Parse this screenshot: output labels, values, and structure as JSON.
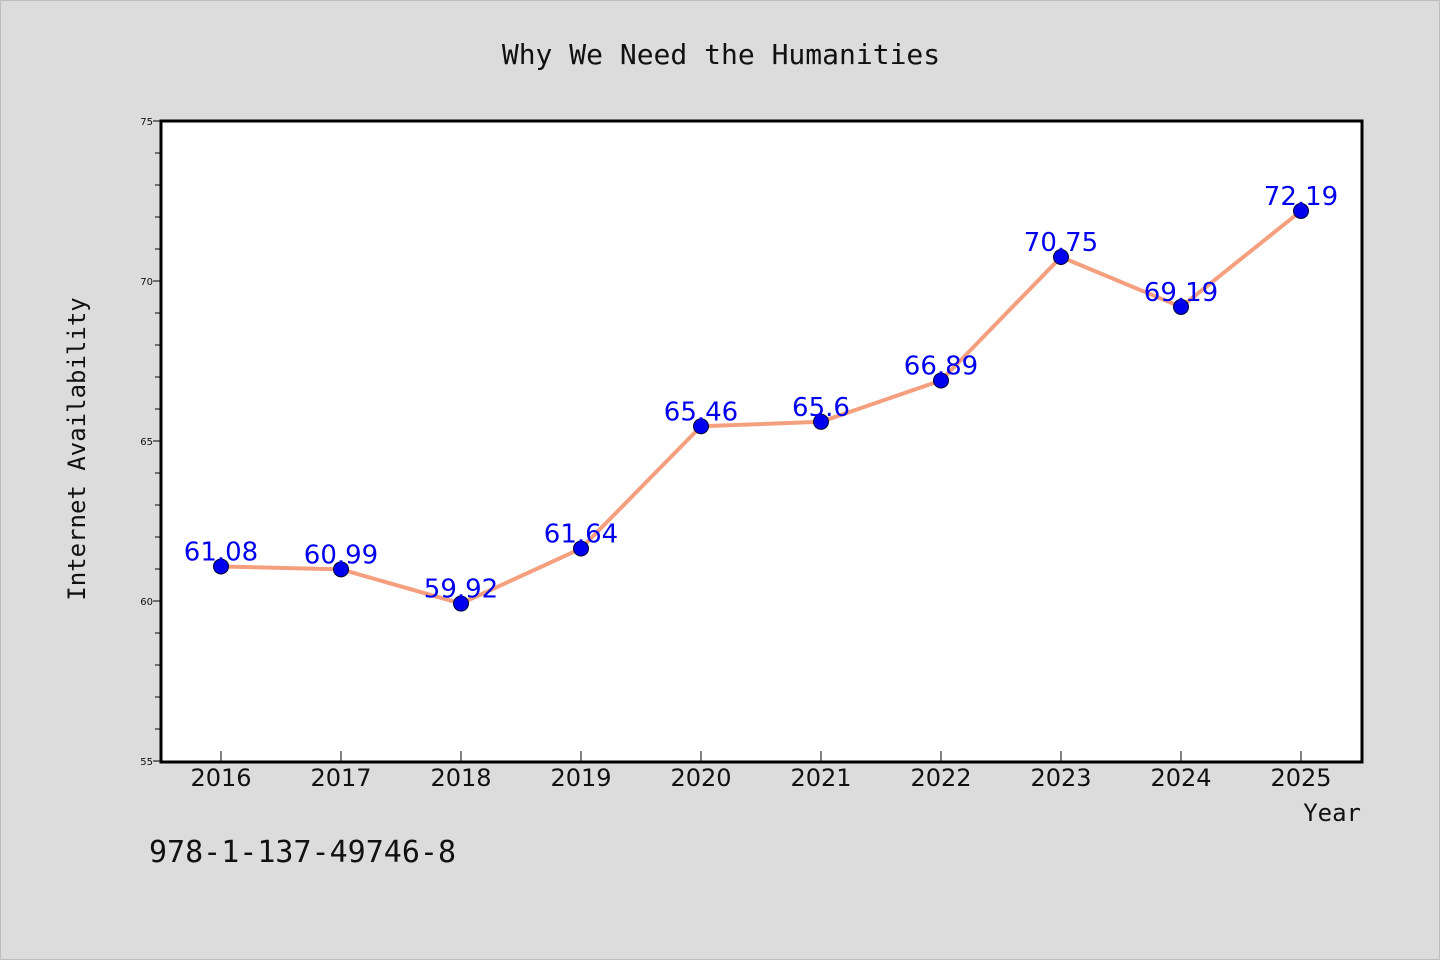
{
  "chart_data": {
    "type": "line",
    "title": "Why We Need the Humanities",
    "xlabel": "Year",
    "ylabel": "Internet Availability",
    "categories": [
      "2016",
      "2017",
      "2018",
      "2019",
      "2020",
      "2021",
      "2022",
      "2023",
      "2024",
      "2025"
    ],
    "values": [
      61.08,
      60.99,
      59.92,
      61.64,
      65.46,
      65.6,
      66.89,
      70.75,
      69.19,
      72.19
    ],
    "data_labels": [
      "61.08",
      "60.99",
      "59.92",
      "61.64",
      "65.46",
      "65.6",
      "66.89",
      "70.75",
      "69.19",
      "72.19"
    ],
    "ylim": [
      55,
      75
    ],
    "y_ticks": [
      55,
      60,
      65,
      70,
      75
    ],
    "grid": false,
    "legend": "none",
    "colors": {
      "line": "#f4a07f",
      "marker": "#0000ee",
      "label": "#0000ee",
      "background": "#dcdcdc",
      "plot_background": "#ffffff"
    }
  },
  "footer": {
    "isbn": "978-1-137-49746-8"
  }
}
